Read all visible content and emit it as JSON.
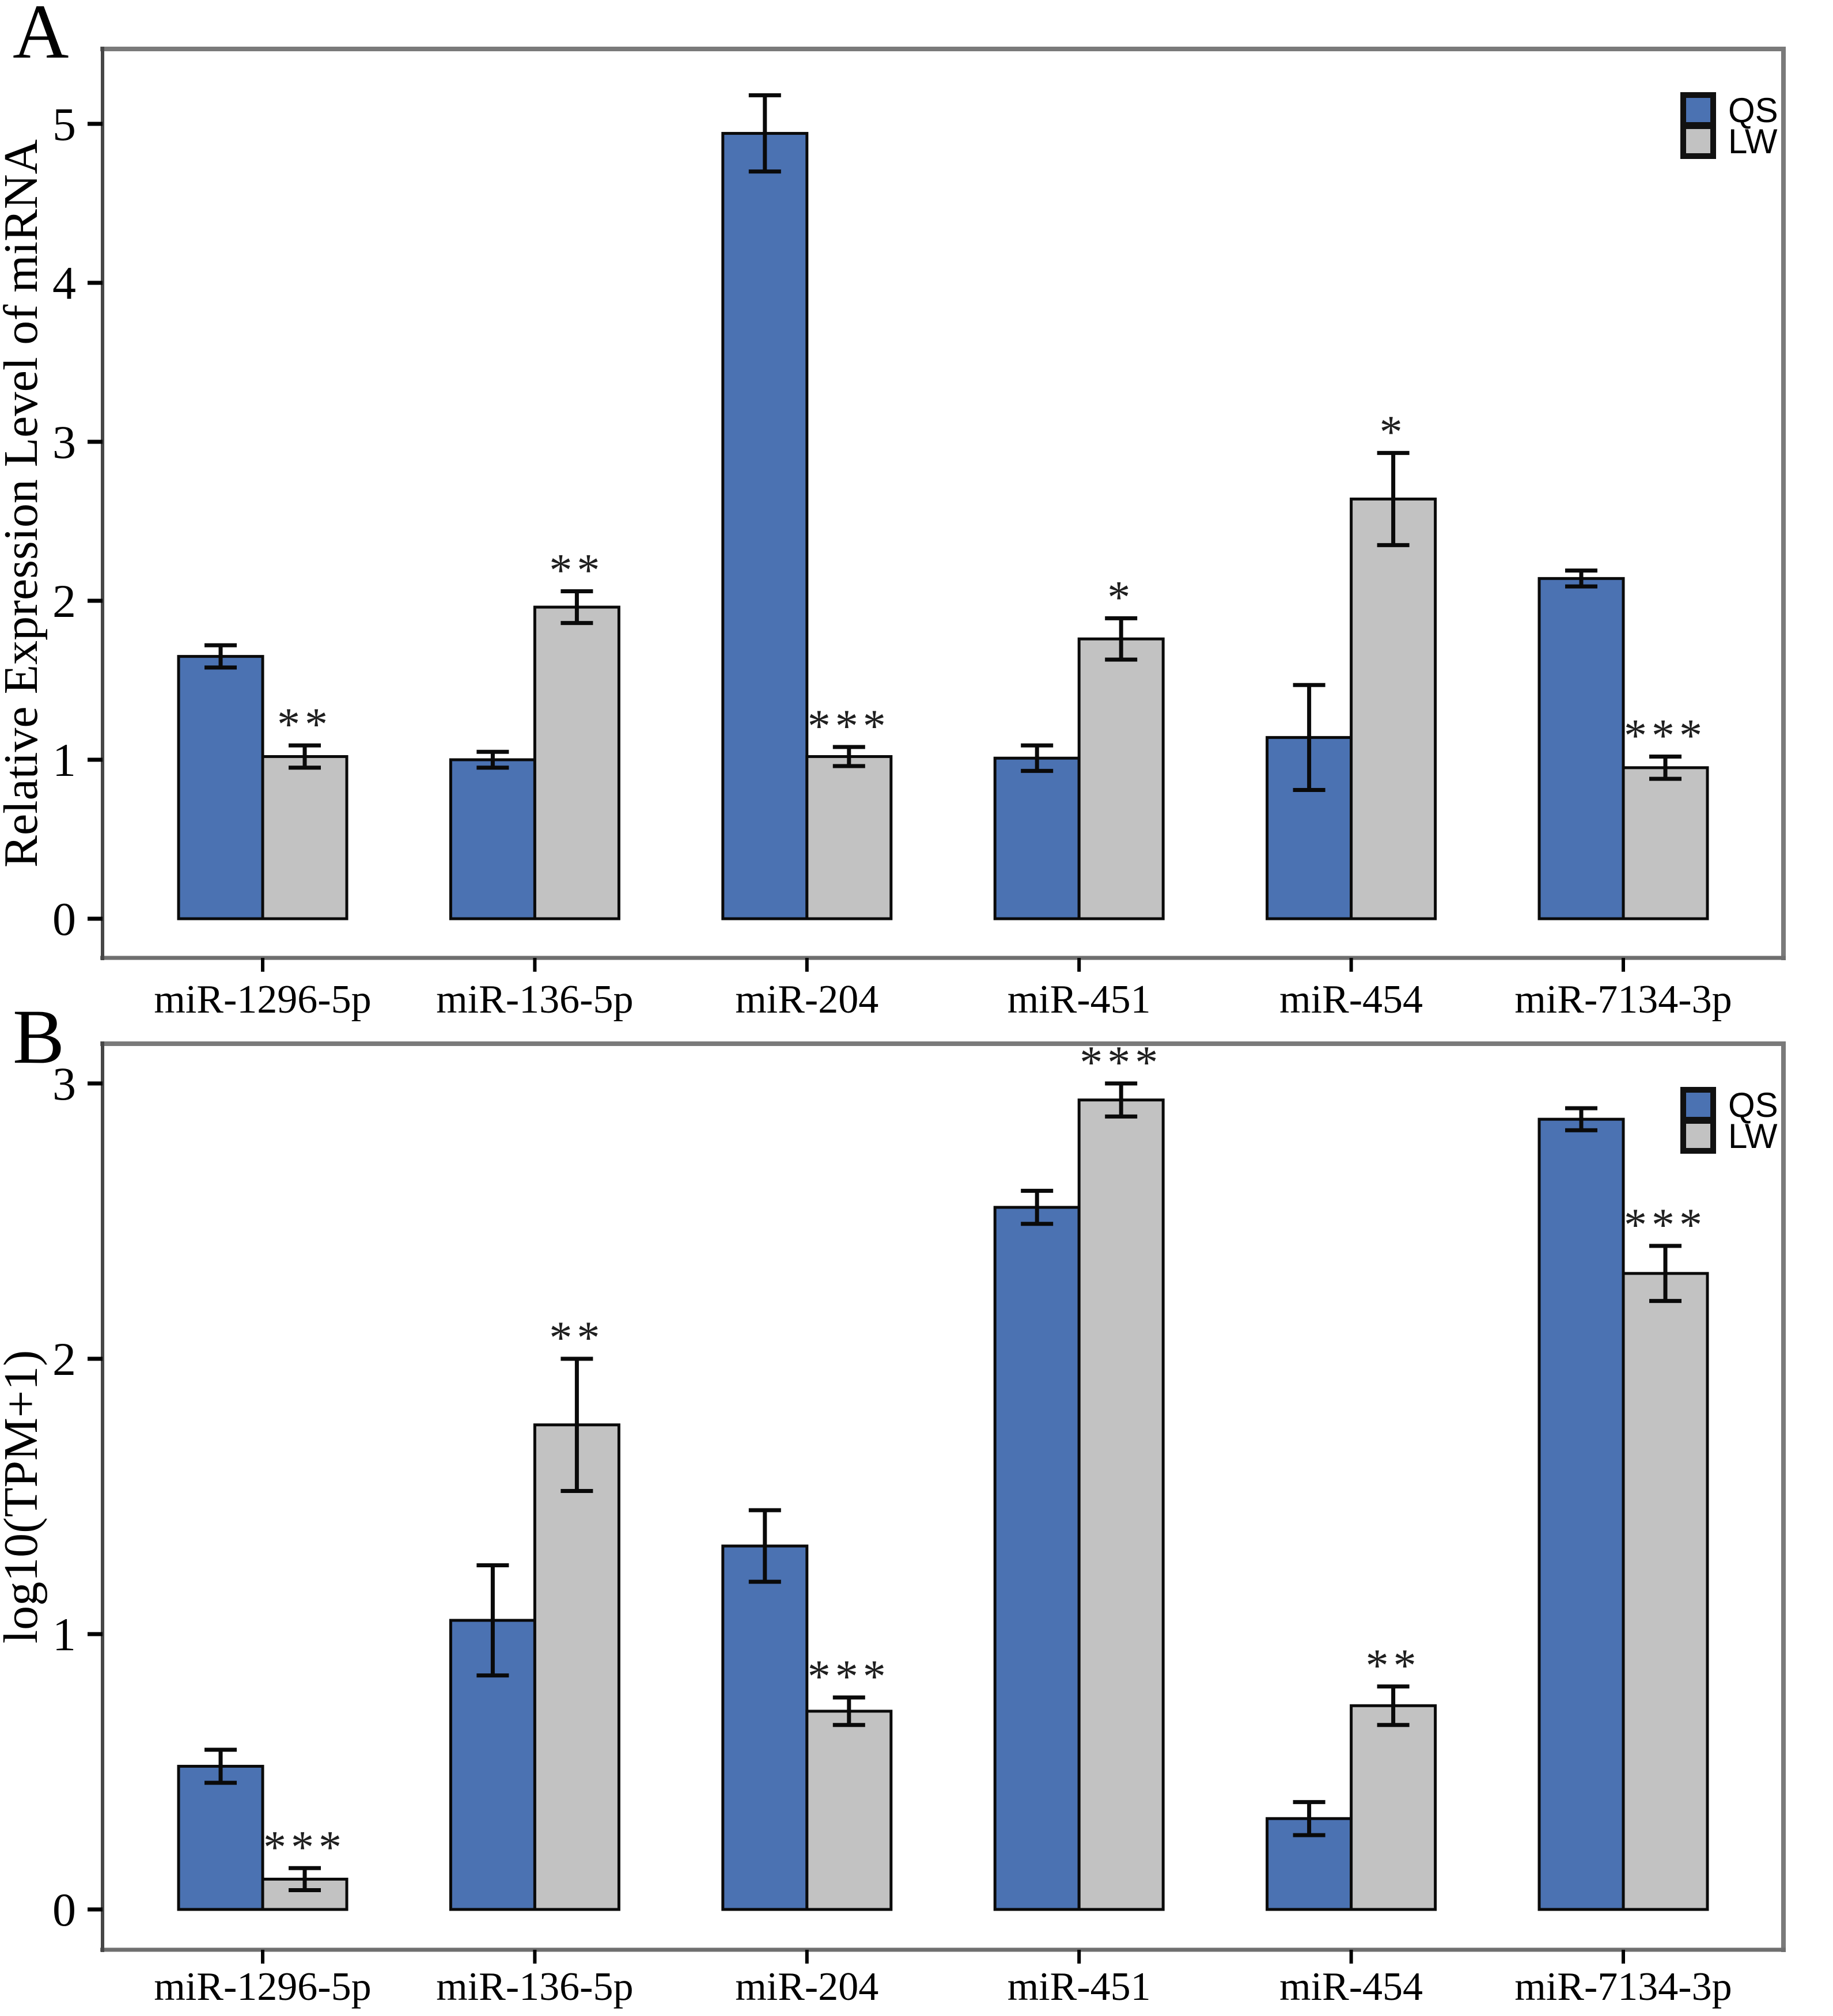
{
  "figure": {
    "background": "#ffffff",
    "colors": {
      "qs_fill": "#4b72b2",
      "lw_fill": "#c2c2c2",
      "bar_stroke": "#0a0a0a",
      "error_stroke": "#0a0a0a",
      "spine_gray": "#7a7a7a",
      "spine_dark": "#474747",
      "text": "#000000",
      "star": "#1f1f1f"
    },
    "legend": {
      "labels": [
        "QS",
        "LW"
      ]
    }
  },
  "chart_data": [
    {
      "id": "A",
      "type": "bar",
      "panel_label": "A",
      "title": "",
      "xlabel": "",
      "ylabel": "Relative Expression Level of miRNA",
      "categories": [
        "miR-1296-5p",
        "miR-136-5p",
        "miR-204",
        "miR-451",
        "miR-454",
        "miR-7134-3p"
      ],
      "series": [
        {
          "name": "QS",
          "values": [
            1.65,
            1.0,
            4.94,
            1.01,
            1.14,
            2.14
          ],
          "errors": [
            0.07,
            0.05,
            0.24,
            0.08,
            0.33,
            0.05
          ]
        },
        {
          "name": "LW",
          "values": [
            1.02,
            1.96,
            1.02,
            1.76,
            2.64,
            0.95
          ],
          "errors": [
            0.07,
            0.1,
            0.06,
            0.13,
            0.29,
            0.07
          ]
        }
      ],
      "significance": {
        "on_series": "LW",
        "labels": [
          "**",
          "**",
          "***",
          "*",
          "*",
          "***"
        ]
      },
      "yticks": [
        0,
        1,
        2,
        3,
        4,
        5
      ],
      "ylim": [
        0,
        5.5
      ],
      "grid": false,
      "legend_position": "top-right"
    },
    {
      "id": "B",
      "type": "bar",
      "panel_label": "B",
      "title": "",
      "xlabel": "",
      "ylabel": "log10(TPM+1)",
      "categories": [
        "miR-1296-5p",
        "miR-136-5p",
        "miR-204",
        "miR-451",
        "miR-454",
        "miR-7134-3p"
      ],
      "series": [
        {
          "name": "QS",
          "values": [
            0.52,
            1.05,
            1.32,
            2.55,
            0.33,
            2.87
          ],
          "errors": [
            0.06,
            0.2,
            0.13,
            0.06,
            0.06,
            0.04
          ]
        },
        {
          "name": "LW",
          "values": [
            0.11,
            1.76,
            0.72,
            2.94,
            0.74,
            2.31
          ],
          "errors": [
            0.04,
            0.24,
            0.05,
            0.06,
            0.07,
            0.1
          ]
        }
      ],
      "significance": {
        "on_series": "LW",
        "labels": [
          "***",
          "**",
          "***",
          "***",
          "**",
          "***"
        ]
      },
      "yticks": [
        0,
        1,
        2,
        3
      ],
      "ylim": [
        0,
        3.1
      ],
      "grid": false,
      "legend_position": "top-right"
    }
  ]
}
